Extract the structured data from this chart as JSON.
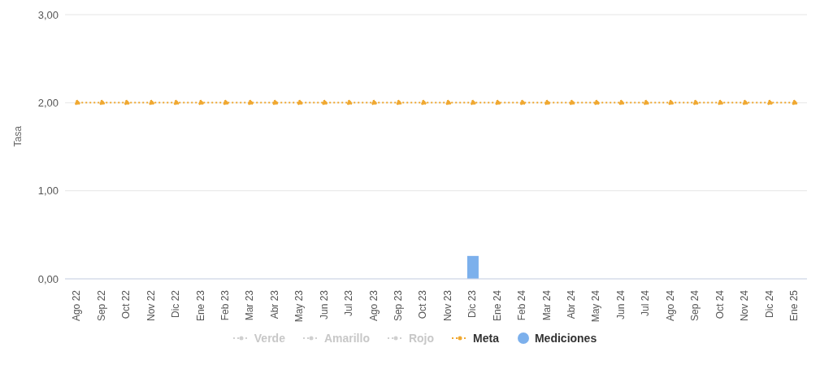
{
  "chart_data": {
    "type": "bar",
    "ylabel": "Tasa",
    "categories": [
      "Ago 22",
      "Sep 22",
      "Oct 22",
      "Nov 22",
      "Dic 22",
      "Ene 23",
      "Feb 23",
      "Mar 23",
      "Abr 23",
      "May 23",
      "Jun 23",
      "Jul 23",
      "Ago 23",
      "Sep 23",
      "Oct 23",
      "Nov 23",
      "Dic 23",
      "Ene 24",
      "Feb 24",
      "Mar 24",
      "Abr 24",
      "May 24",
      "Jun 24",
      "Jul 24",
      "Ago 24",
      "Sep 24",
      "Oct 24",
      "Nov 24",
      "Dic 24",
      "Ene 25"
    ],
    "series": [
      {
        "name": "Verde",
        "type": "line",
        "color": "#d0d0d0",
        "line_style": "dotted",
        "values": [
          null,
          null,
          null,
          null,
          null,
          null,
          null,
          null,
          null,
          null,
          null,
          null,
          null,
          null,
          null,
          null,
          null,
          null,
          null,
          null,
          null,
          null,
          null,
          null,
          null,
          null,
          null,
          null,
          null,
          null
        ]
      },
      {
        "name": "Amarillo",
        "type": "line",
        "color": "#d0d0d0",
        "line_style": "dotted",
        "values": [
          null,
          null,
          null,
          null,
          null,
          null,
          null,
          null,
          null,
          null,
          null,
          null,
          null,
          null,
          null,
          null,
          null,
          null,
          null,
          null,
          null,
          null,
          null,
          null,
          null,
          null,
          null,
          null,
          null,
          null
        ]
      },
      {
        "name": "Rojo",
        "type": "line",
        "color": "#d0d0d0",
        "line_style": "dotted",
        "values": [
          null,
          null,
          null,
          null,
          null,
          null,
          null,
          null,
          null,
          null,
          null,
          null,
          null,
          null,
          null,
          null,
          null,
          null,
          null,
          null,
          null,
          null,
          null,
          null,
          null,
          null,
          null,
          null,
          null,
          null
        ]
      },
      {
        "name": "Meta",
        "type": "line",
        "color": "#f0a830",
        "line_style": "dotted",
        "values": [
          2,
          2,
          2,
          2,
          2,
          2,
          2,
          2,
          2,
          2,
          2,
          2,
          2,
          2,
          2,
          2,
          2,
          2,
          2,
          2,
          2,
          2,
          2,
          2,
          2,
          2,
          2,
          2,
          2,
          2
        ]
      },
      {
        "name": "Mediciones",
        "color": "#7cb0ec",
        "values": [
          null,
          null,
          null,
          null,
          null,
          null,
          null,
          null,
          null,
          null,
          null,
          null,
          null,
          null,
          null,
          null,
          0.26,
          null,
          null,
          null,
          null,
          null,
          null,
          null,
          null,
          null,
          null,
          null,
          null,
          null
        ]
      }
    ],
    "ylim": [
      0,
      3
    ],
    "yticks": [
      {
        "value": 0,
        "label": "0,00"
      },
      {
        "value": 1,
        "label": "1,00"
      },
      {
        "value": 2,
        "label": "2,00"
      },
      {
        "value": 3,
        "label": "3,00"
      }
    ],
    "grid": "y",
    "legend": "bottom",
    "marker": "circle"
  }
}
